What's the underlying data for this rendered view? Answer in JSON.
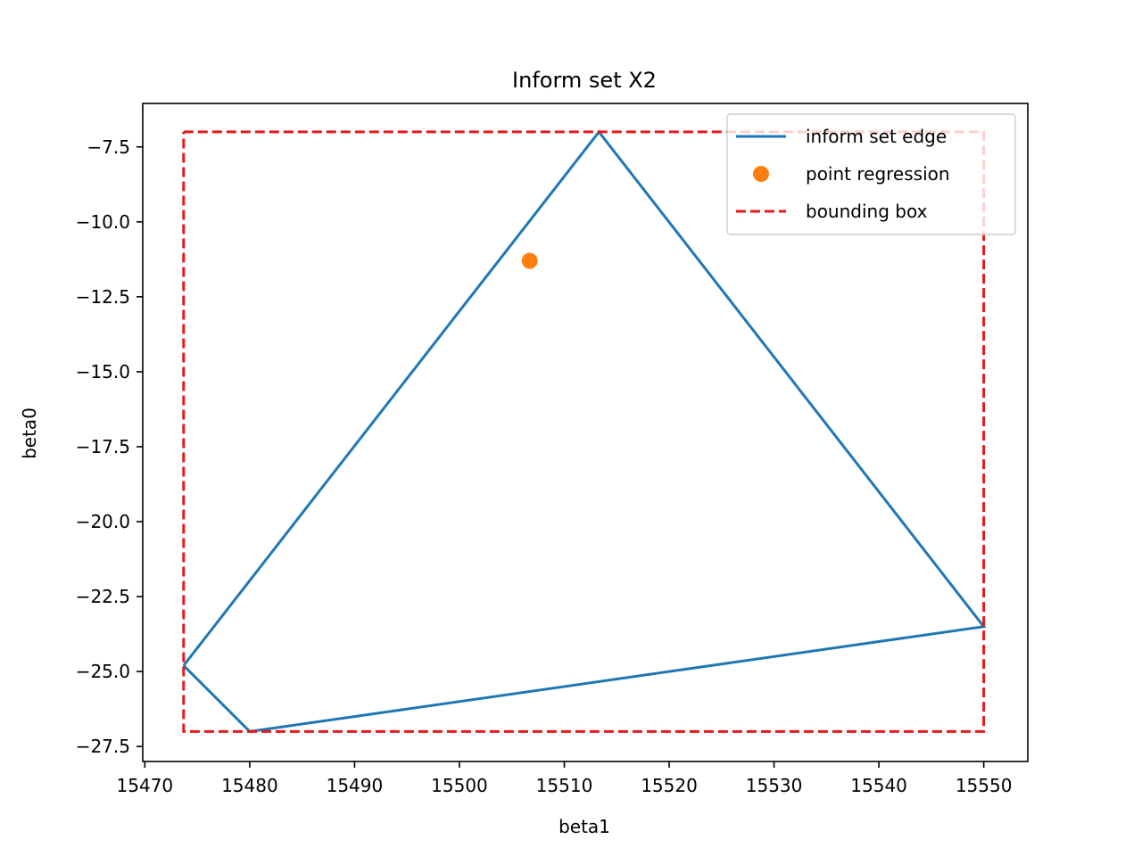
{
  "chart_data": {
    "type": "line",
    "title": "Inform set X2",
    "xlabel": "beta1",
    "ylabel": "beta0",
    "xlim": [
      15469.8,
      15554.2
    ],
    "ylim": [
      -28.0,
      -6.05
    ],
    "xticks": [
      15470,
      15480,
      15490,
      15500,
      15510,
      15520,
      15530,
      15540,
      15550
    ],
    "xtick_labels": [
      "15470",
      "15480",
      "15490",
      "15500",
      "15510",
      "15520",
      "15530",
      "15540",
      "15550"
    ],
    "yticks": [
      -7.5,
      -10.0,
      -12.5,
      -15.0,
      -17.5,
      -20.0,
      -22.5,
      -25.0,
      -27.5
    ],
    "ytick_labels": [
      "−7.5",
      "−10.0",
      "−12.5",
      "−15.0",
      "−17.5",
      "−20.0",
      "−22.5",
      "−25.0",
      "−27.5"
    ],
    "grid": false,
    "legend_position": "top-right",
    "series": [
      {
        "name": "inform set edge",
        "kind": "line",
        "color": "#1f77b4",
        "points": [
          [
            15473.7,
            -24.8
          ],
          [
            15513.3,
            -7.0
          ],
          [
            15550.0,
            -23.5
          ],
          [
            15480.0,
            -27.0
          ],
          [
            15473.7,
            -24.8
          ]
        ]
      },
      {
        "name": "point regression",
        "kind": "marker",
        "color": "#ff7f0e",
        "points": [
          [
            15506.7,
            -11.3
          ]
        ]
      },
      {
        "name": "bounding box",
        "kind": "dashed-line",
        "color": "#e41a1c",
        "points": [
          [
            15473.7,
            -7.0
          ],
          [
            15550.0,
            -7.0
          ],
          [
            15550.0,
            -27.0
          ],
          [
            15473.7,
            -27.0
          ],
          [
            15473.7,
            -7.0
          ]
        ]
      }
    ]
  }
}
